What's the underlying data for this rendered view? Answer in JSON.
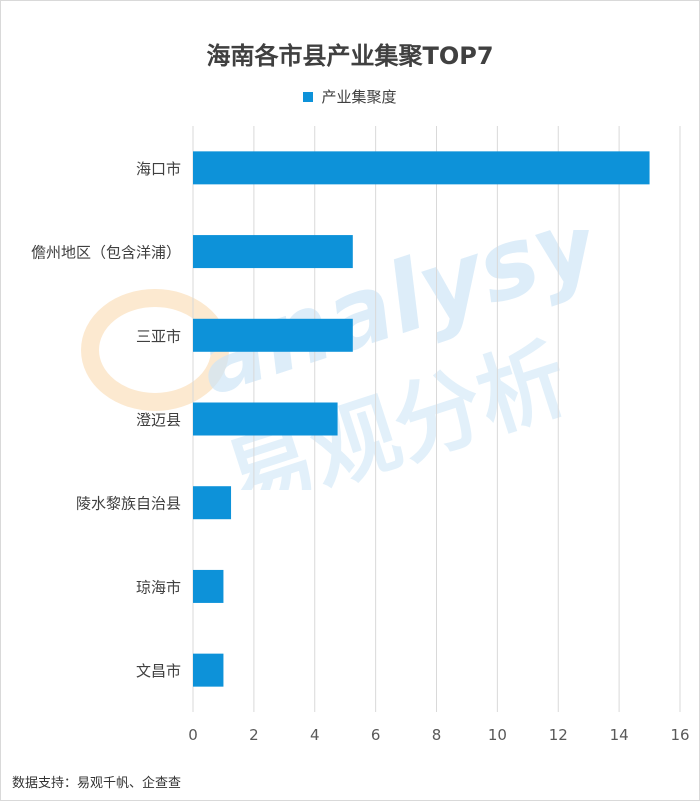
{
  "chart_data": {
    "type": "bar",
    "orientation": "horizontal",
    "title": "海南各市县产业集聚TOP7",
    "categories": [
      "海口市",
      "儋州地区（包含洋浦）",
      "三亚市",
      "澄迈县",
      "陵水黎族自治县",
      "琼海市",
      "文昌市"
    ],
    "series": [
      {
        "name": "产业集聚度",
        "values": [
          15,
          5.25,
          5.25,
          4.75,
          1.25,
          1,
          1
        ],
        "color": "#0d92d9"
      }
    ],
    "xlim": [
      0,
      16
    ],
    "x_ticks": [
      "0",
      "2",
      "4",
      "6",
      "8",
      "10",
      "12",
      "14",
      "16"
    ],
    "grid": "vertical",
    "legend": "top-center"
  },
  "watermark": {
    "latin": "analysys",
    "chinese": "易观分析",
    "colors": {
      "latin": "#cfe6f7",
      "chinese": "#d7ebf8",
      "logo": "#fbe3c4"
    }
  },
  "footer": "数据支持：易观千帆、企查查"
}
